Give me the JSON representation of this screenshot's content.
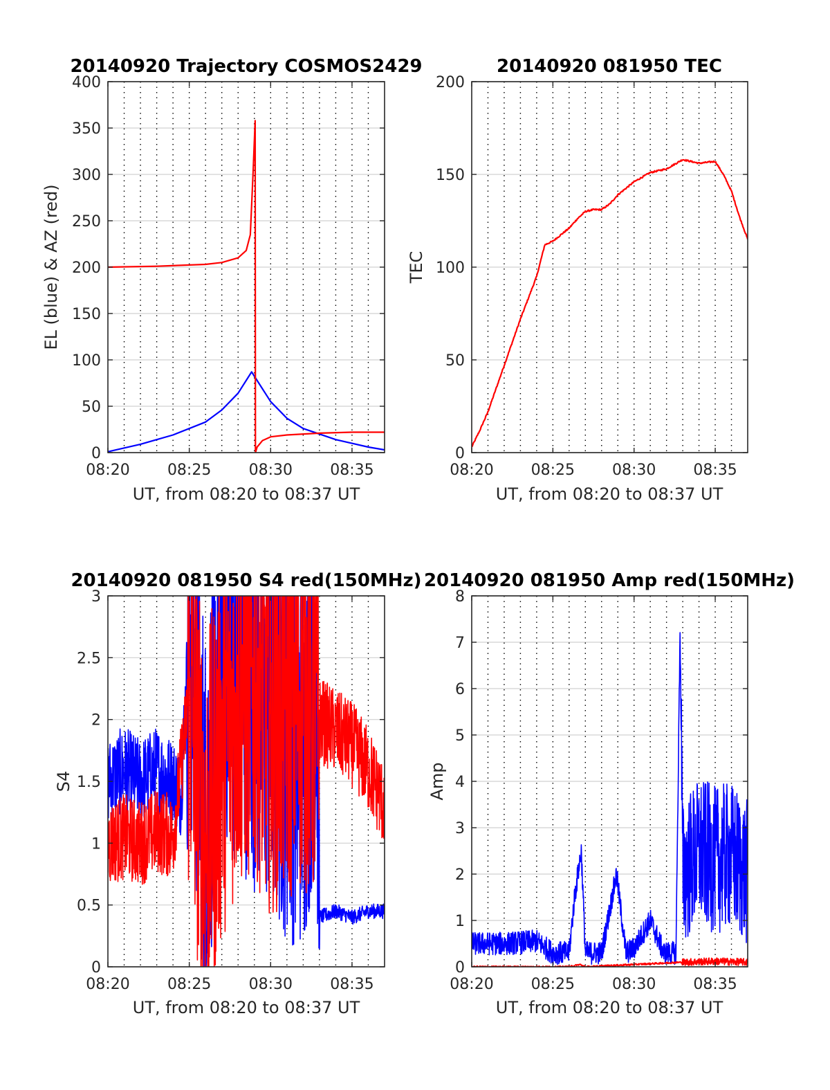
{
  "colors": {
    "el": "#0000ff",
    "az": "#ff0000",
    "tec": "#ff0000",
    "s4_blue": "#0000ff",
    "s4_red": "#ff0000",
    "amp_blue": "#0000ff",
    "amp_red": "#ff0000",
    "grid_minor": "#000000",
    "grid_major": "#d0d0d0",
    "axes": "#262626"
  },
  "chart_data": [
    {
      "type": "line",
      "title": "20140920 Trajectory COSMOS2429",
      "xlabel": "UT, from 08:20 to 08:37 UT",
      "ylabel": "EL (blue) & AZ (red)",
      "xlim": [
        "08:20",
        "08:37"
      ],
      "ylim": [
        0,
        400
      ],
      "xticks": [
        "08:20",
        "08:25",
        "08:30",
        "08:35"
      ],
      "yticks": [
        "0",
        "50",
        "100",
        "150",
        "200",
        "250",
        "300",
        "350",
        "400"
      ],
      "grid": true,
      "series": [
        {
          "color": "blue",
          "x": [
            "08:20",
            "08:22",
            "08:24",
            "08:26",
            "08:27",
            "08:28",
            "08:28:50",
            "08:30",
            "08:31",
            "08:32",
            "08:34",
            "08:36",
            "08:37"
          ],
          "y": [
            1,
            9,
            19,
            33,
            46,
            64,
            87,
            55,
            37,
            26,
            14,
            6,
            3
          ]
        },
        {
          "color": "red",
          "x": [
            "08:20",
            "08:23",
            "08:26",
            "08:27",
            "08:28",
            "08:28:30",
            "08:28:45",
            "08:28:55",
            "08:29:03",
            "08:29:04",
            "08:29:10",
            "08:29:30",
            "08:30",
            "08:31",
            "08:33",
            "08:35",
            "08:37"
          ],
          "y": [
            200,
            201,
            203,
            205,
            210,
            218,
            235,
            300,
            358,
            0,
            6,
            13,
            17,
            19,
            21,
            22,
            22
          ]
        }
      ]
    },
    {
      "type": "line",
      "title": "20140920 081950 TEC",
      "xlabel": "UT, from 08:20 to 08:37 UT",
      "ylabel": "TEC",
      "xlim": [
        "08:20",
        "08:37"
      ],
      "ylim": [
        0,
        200
      ],
      "xticks": [
        "08:20",
        "08:25",
        "08:30",
        "08:35"
      ],
      "yticks": [
        "0",
        "50",
        "100",
        "150",
        "200"
      ],
      "grid": true,
      "series": [
        {
          "color": "red",
          "x": [
            "08:20",
            "08:20:30",
            "08:21",
            "08:22",
            "08:23",
            "08:24",
            "08:24:30",
            "08:25",
            "08:26",
            "08:26:30",
            "08:27",
            "08:27:30",
            "08:28",
            "08:28:30",
            "08:29",
            "08:30",
            "08:31",
            "08:32",
            "08:33",
            "08:34",
            "08:35",
            "08:35:30",
            "08:36",
            "08:36:30",
            "08:37"
          ],
          "y": [
            3,
            12,
            22,
            47,
            72,
            95,
            112,
            114,
            121,
            126,
            130,
            131,
            131,
            134,
            139,
            146,
            151,
            153,
            158,
            156,
            157,
            150,
            141,
            127,
            115
          ]
        }
      ]
    },
    {
      "type": "line",
      "title": "20140920 081950 S4 red(150MHz)",
      "xlabel": "UT, from 08:20 to 08:37 UT",
      "ylabel": "S4",
      "xlim": [
        "08:20",
        "08:37"
      ],
      "ylim": [
        0,
        3
      ],
      "xticks": [
        "08:20",
        "08:25",
        "08:30",
        "08:35"
      ],
      "yticks": [
        "0",
        "0.5",
        "1",
        "1.5",
        "2",
        "2.5",
        "3"
      ],
      "grid": true,
      "series": [
        {
          "color": "blue",
          "x": [
            "08:20",
            "08:21",
            "08:22",
            "08:23",
            "08:24",
            "08:24:30",
            "08:25",
            "08:26",
            "08:27",
            "08:28",
            "08:29",
            "08:30",
            "08:31",
            "08:32",
            "08:32:50",
            "08:33",
            "08:34",
            "08:35",
            "08:36",
            "08:37"
          ],
          "y": [
            1.5,
            1.6,
            1.5,
            1.6,
            1.5,
            1.4,
            2.8,
            1.2,
            2.6,
            2.4,
            2.2,
            2.0,
            1.8,
            1.7,
            2.4,
            0.4,
            0.45,
            0.4,
            0.45,
            0.45
          ]
        },
        {
          "color": "red",
          "x": [
            "08:20",
            "08:21",
            "08:22",
            "08:23",
            "08:24",
            "08:25",
            "08:26",
            "08:27",
            "08:28",
            "08:29",
            "08:30",
            "08:31",
            "08:32",
            "08:33",
            "08:34",
            "08:35",
            "08:36",
            "08:37"
          ],
          "y": [
            1.0,
            1.05,
            1.0,
            1.1,
            1.05,
            2.2,
            1.0,
            1.8,
            2.2,
            2.3,
            2.0,
            2.1,
            2.2,
            2.0,
            1.9,
            1.8,
            1.6,
            1.3
          ]
        }
      ]
    },
    {
      "type": "line",
      "title": "20140920 081950 Amp red(150MHz)",
      "xlabel": "UT, from 08:20 to 08:37 UT",
      "ylabel": "Amp",
      "xlim": [
        "08:20",
        "08:37"
      ],
      "ylim": [
        0,
        8
      ],
      "xticks": [
        "08:20",
        "08:25",
        "08:30",
        "08:35"
      ],
      "yticks": [
        "0",
        "1",
        "2",
        "3",
        "4",
        "5",
        "6",
        "7",
        "8"
      ],
      "grid": true,
      "series": [
        {
          "color": "blue",
          "x": [
            "08:20",
            "08:22",
            "08:24",
            "08:25",
            "08:26",
            "08:26:20",
            "08:26:45",
            "08:27",
            "08:28",
            "08:28:55",
            "08:29:30",
            "08:30",
            "08:31",
            "08:31:50",
            "08:32:35",
            "08:32:50",
            "08:33",
            "08:34",
            "08:35",
            "08:36",
            "08:37"
          ],
          "y": [
            0.5,
            0.5,
            0.55,
            0.3,
            0.3,
            1.5,
            2.5,
            0.3,
            0.3,
            2.0,
            0.3,
            0.4,
            1.0,
            0.3,
            0.3,
            7.3,
            2.0,
            2.5,
            2.3,
            2.4,
            2.0
          ]
        },
        {
          "color": "red",
          "x": [
            "08:20",
            "08:26",
            "08:26:40",
            "08:27",
            "08:33",
            "08:35",
            "08:37"
          ],
          "y": [
            0,
            0,
            0.05,
            0,
            0.1,
            0.12,
            0.1
          ]
        }
      ]
    }
  ]
}
